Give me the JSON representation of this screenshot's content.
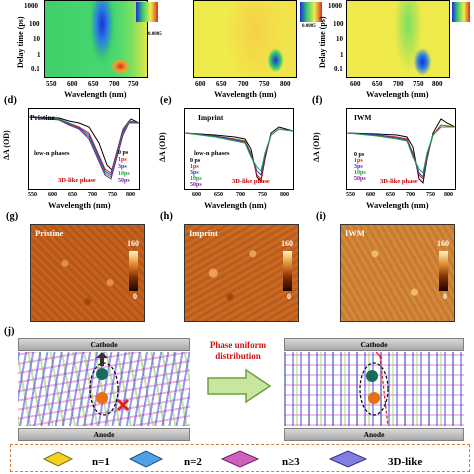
{
  "top_row": {
    "ylabel": "Delay time (ps)",
    "xlabel": "Wavelength (nm)",
    "y_ticks": [
      "1000",
      "100",
      "10",
      "1",
      "0.1"
    ],
    "x_ticks": [
      "550",
      "600",
      "650",
      "700",
      "750",
      "800"
    ],
    "colorbar_value": "0.0005",
    "colors": {
      "background": "#f2ea4a",
      "green": "#3fd06a",
      "blue": "#1a30d8",
      "red": "#d83020"
    }
  },
  "line_panels": [
    {
      "label": "(d)",
      "title": "Pristine",
      "ylabel": "ΔA (OD)",
      "xlabel": "Wavelength (nm)",
      "x_ticks": [
        "550",
        "600",
        "650",
        "700",
        "750",
        "800"
      ],
      "y_ticks": [
        "0.0000",
        "-0.0005",
        "-0.0010",
        "-0.0015",
        "-0.0020",
        "-0.0025",
        "-0.0030",
        "-0.0035",
        "-0.0040",
        "-0.0045"
      ],
      "annotation_lown": "low-n phases",
      "annotation_3d": "3D-like phase",
      "legend": [
        "0 ps",
        "1ps",
        "3ps",
        "10ps",
        "50ps"
      ]
    },
    {
      "label": "(e)",
      "title": "Imprint",
      "ylabel": "ΔA (OD)",
      "xlabel": "Wavelength (nm)",
      "x_ticks": [
        "600",
        "650",
        "700",
        "750",
        "800"
      ],
      "y_ticks": [
        "0.000",
        "-0.002",
        "-0.004",
        "-0.006",
        "-0.008",
        "-0.010",
        "-0.012",
        "-0.014"
      ],
      "annotation_lown": "low-n phases",
      "annotation_3d": "3D-like phase",
      "legend": [
        "0 ps",
        "1ps",
        "3ps",
        "10ps",
        "50ps"
      ]
    },
    {
      "label": "(f)",
      "title": "IWM",
      "ylabel": "ΔA (OD)",
      "xlabel": "Wavelength (nm)",
      "x_ticks": [
        "550",
        "600",
        "650",
        "700",
        "750",
        "800"
      ],
      "y_ticks": [
        "0.000",
        "-0.002",
        "-0.004",
        "-0.006",
        "-0.008",
        "-0.010",
        "-0.012",
        "-0.014",
        "-0.016"
      ],
      "annotation_3d": "3D-like phase",
      "legend": [
        "0 ps",
        "1ps",
        "3ps",
        "10ps",
        "50ps"
      ]
    }
  ],
  "series_colors": [
    "#000000",
    "#d62020",
    "#2040d0",
    "#20a040",
    "#8020a0"
  ],
  "afm_panels": [
    {
      "label": "(g)",
      "title": "Pristine",
      "scale_max": "160",
      "scale_min": "0",
      "tone": "#c4621e"
    },
    {
      "label": "(h)",
      "title": "Imprint",
      "scale_max": "160",
      "scale_min": "0",
      "tone": "#c96a22"
    },
    {
      "label": "(i)",
      "title": "IWM",
      "scale_max": "160",
      "scale_min": "0",
      "tone": "#d4883a"
    }
  ],
  "schematic": {
    "label": "(j)",
    "cathode": "Cathode",
    "anode": "Anode",
    "arrow_text": "Phase uniform distribution",
    "legend": [
      "n=1",
      "n=2",
      "n≥3",
      "3D-like"
    ]
  }
}
